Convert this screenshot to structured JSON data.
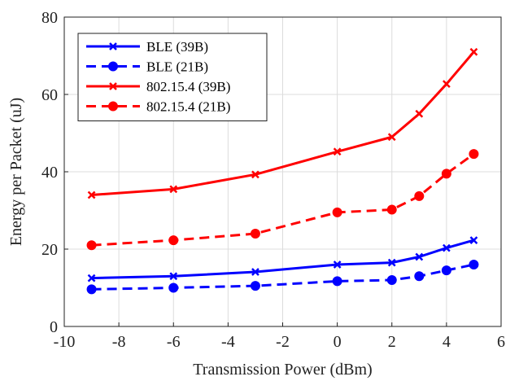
{
  "chart_data": {
    "type": "line",
    "xlabel": "Transmission Power (dBm)",
    "ylabel": "Energy per Packet (uJ)",
    "xlim": [
      -10,
      6
    ],
    "ylim": [
      0,
      80
    ],
    "xticks": [
      -10,
      -8,
      -6,
      -4,
      -2,
      0,
      2,
      4,
      6
    ],
    "yticks": [
      0,
      20,
      40,
      60,
      80
    ],
    "grid": true,
    "legend_position": "top-left",
    "series": [
      {
        "name": "BLE (39B)",
        "color": "#0000ff",
        "dash": "solid",
        "marker": "x",
        "points": [
          [
            -9,
            12.5
          ],
          [
            -6,
            13.0
          ],
          [
            -3,
            14.1
          ],
          [
            0,
            16.0
          ],
          [
            2,
            16.5
          ],
          [
            3,
            18.0
          ],
          [
            4,
            20.3
          ],
          [
            5,
            22.3
          ]
        ]
      },
      {
        "name": "BLE (21B)",
        "color": "#0000ff",
        "dash": "dashed",
        "marker": "circle",
        "points": [
          [
            -9,
            9.6
          ],
          [
            -6,
            10.0
          ],
          [
            -3,
            10.5
          ],
          [
            0,
            11.7
          ],
          [
            2,
            12.0
          ],
          [
            3,
            13.0
          ],
          [
            4,
            14.5
          ],
          [
            5,
            16.0
          ]
        ]
      },
      {
        "name": "802.15.4 (39B)",
        "color": "#ff0000",
        "dash": "solid",
        "marker": "x",
        "points": [
          [
            -9,
            34.0
          ],
          [
            -6,
            35.5
          ],
          [
            -3,
            39.3
          ],
          [
            0,
            45.2
          ],
          [
            2,
            49.0
          ],
          [
            3,
            55.0
          ],
          [
            4,
            62.7
          ],
          [
            5,
            71.0
          ]
        ]
      },
      {
        "name": "802.15.4 (21B)",
        "color": "#ff0000",
        "dash": "dashed",
        "marker": "circle",
        "points": [
          [
            -9,
            21.0
          ],
          [
            -6,
            22.3
          ],
          [
            -3,
            24.0
          ],
          [
            0,
            29.5
          ],
          [
            2,
            30.2
          ],
          [
            3,
            33.7
          ],
          [
            4,
            39.5
          ],
          [
            5,
            44.6
          ]
        ]
      }
    ]
  }
}
